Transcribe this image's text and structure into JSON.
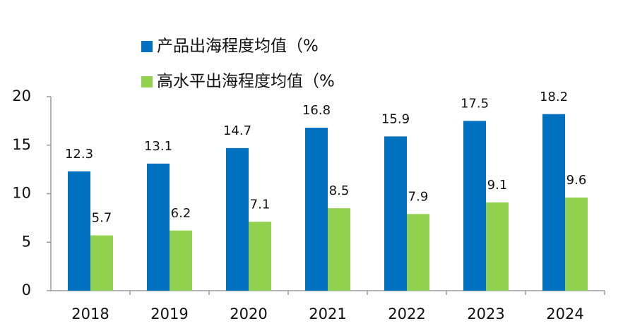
{
  "chart_data": {
    "type": "bar",
    "categories": [
      "2018",
      "2019",
      "2020",
      "2021",
      "2022",
      "2023",
      "2024"
    ],
    "series": [
      {
        "name": "产品出海程度均值（%",
        "color": "#0070c0",
        "values": [
          12.3,
          13.1,
          14.7,
          16.8,
          15.9,
          17.5,
          18.2
        ]
      },
      {
        "name": "高水平出海程度均值（%",
        "color": "#92d050",
        "values": [
          5.7,
          6.2,
          7.1,
          8.5,
          7.9,
          9.1,
          9.6
        ]
      }
    ],
    "ylim": [
      0,
      20
    ],
    "yticks": [
      0,
      5,
      10,
      15,
      20
    ],
    "grid": false,
    "legend": "top"
  }
}
